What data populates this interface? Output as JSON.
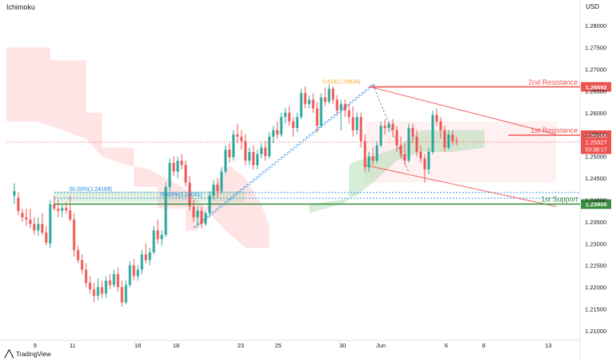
{
  "indicator": "Ichimoku",
  "currency": "USD",
  "brand": "TradingView",
  "colors": {
    "up": "#26a69a",
    "down": "#ef5350",
    "resistance": "#ef5350",
    "support": "#388e3c",
    "fib": "#ffa726",
    "fib_retrace": "#1e88e5",
    "channel": "#ef5350",
    "cloud_bull": "#a5d6a7",
    "cloud_bear": "#ffcdd2"
  },
  "chart_data": {
    "type": "candlestick",
    "ylim": [
      1.2078,
      1.2833
    ],
    "y_ticks": [
      "1.28000",
      "1.27500",
      "1.27000",
      "1.26500",
      "1.26000",
      "1.25500",
      "1.25000",
      "1.24500",
      "1.24000",
      "1.23500",
      "1.23000",
      "1.22500",
      "1.22000",
      "1.21500",
      "1.21000"
    ],
    "x_ticks": [
      "9",
      "11",
      "16",
      "18",
      "23",
      "25",
      "30",
      "Jun",
      "6",
      "8",
      "13"
    ],
    "levels": [
      {
        "key": "r2",
        "label": "2nd Resistance",
        "price": 1.26592,
        "price_label": "1.26592",
        "role": "resistance"
      },
      {
        "key": "r1",
        "label": "1st Resistance",
        "price": 1.25486,
        "price_label": "1.25486",
        "role": "resistance"
      },
      {
        "key": "s1",
        "label": "1st Support",
        "price": 1.23905,
        "price_label": "1.23905",
        "role": "support"
      }
    ],
    "current_price": {
      "price": 1.25327,
      "label": "1.25327",
      "countdown": "03:38:17"
    },
    "fib_labels": [
      {
        "text": "0.618(1.26634)",
        "price": 1.26634
      },
      {
        "text": "50.00%(1.24169)",
        "price": 1.24169
      },
      {
        "text": "78.60%(1.24041)",
        "price": 1.24041
      }
    ],
    "candles": [
      [
        1.241,
        1.2438,
        1.239,
        1.242
      ],
      [
        1.2405,
        1.2418,
        1.2365,
        1.2375
      ],
      [
        1.237,
        1.238,
        1.235,
        1.236
      ],
      [
        1.236,
        1.238,
        1.234,
        1.2355
      ],
      [
        1.2355,
        1.238,
        1.2335,
        1.2345
      ],
      [
        1.2345,
        1.236,
        1.232,
        1.233
      ],
      [
        1.233,
        1.236,
        1.2318,
        1.2345
      ],
      [
        1.2345,
        1.237,
        1.232,
        1.2325
      ],
      [
        1.2325,
        1.234,
        1.2295,
        1.2302
      ],
      [
        1.23,
        1.24,
        1.229,
        1.239
      ],
      [
        1.239,
        1.241,
        1.2375,
        1.238
      ],
      [
        1.238,
        1.24,
        1.236,
        1.2375
      ],
      [
        1.2375,
        1.239,
        1.236,
        1.2382
      ],
      [
        1.2382,
        1.2395,
        1.2368,
        1.2376
      ],
      [
        1.2376,
        1.241,
        1.235,
        1.2355
      ],
      [
        1.2355,
        1.237,
        1.227,
        1.2285
      ],
      [
        1.2285,
        1.2295,
        1.2255,
        1.2262
      ],
      [
        1.2262,
        1.2275,
        1.223,
        1.224
      ],
      [
        1.224,
        1.2255,
        1.22,
        1.221
      ],
      [
        1.221,
        1.2225,
        1.2185,
        1.2195
      ],
      [
        1.2195,
        1.221,
        1.2165,
        1.218
      ],
      [
        1.218,
        1.222,
        1.217,
        1.22
      ],
      [
        1.22,
        1.2215,
        1.2175,
        1.2185
      ],
      [
        1.2185,
        1.2225,
        1.2175,
        1.2215
      ],
      [
        1.2215,
        1.223,
        1.2195,
        1.2205
      ],
      [
        1.2205,
        1.224,
        1.22,
        1.223
      ],
      [
        1.223,
        1.2245,
        1.219,
        1.22
      ],
      [
        1.22,
        1.2215,
        1.2155,
        1.2165
      ],
      [
        1.2165,
        1.2215,
        1.216,
        1.2205
      ],
      [
        1.2205,
        1.226,
        1.22,
        1.225
      ],
      [
        1.225,
        1.2265,
        1.2215,
        1.2225
      ],
      [
        1.2225,
        1.225,
        1.2215,
        1.224
      ],
      [
        1.224,
        1.2285,
        1.223,
        1.2275
      ],
      [
        1.2275,
        1.23,
        1.2255,
        1.2262
      ],
      [
        1.2262,
        1.229,
        1.225,
        1.228
      ],
      [
        1.228,
        1.234,
        1.2275,
        1.233
      ],
      [
        1.233,
        1.2355,
        1.23,
        1.231
      ],
      [
        1.231,
        1.233,
        1.2295,
        1.232
      ],
      [
        1.232,
        1.244,
        1.2315,
        1.243
      ],
      [
        1.243,
        1.2495,
        1.242,
        1.2485
      ],
      [
        1.2485,
        1.25,
        1.2455,
        1.2465
      ],
      [
        1.2465,
        1.25,
        1.245,
        1.249
      ],
      [
        1.249,
        1.2505,
        1.247,
        1.248
      ],
      [
        1.248,
        1.249,
        1.243,
        1.244
      ],
      [
        1.244,
        1.2455,
        1.2375,
        1.2385
      ],
      [
        1.2385,
        1.24,
        1.235,
        1.236
      ],
      [
        1.236,
        1.2385,
        1.234,
        1.2375
      ],
      [
        1.2375,
        1.2385,
        1.2335,
        1.2345
      ],
      [
        1.2345,
        1.2375,
        1.234,
        1.237
      ],
      [
        1.237,
        1.242,
        1.236,
        1.241
      ],
      [
        1.241,
        1.2445,
        1.24,
        1.2435
      ],
      [
        1.2435,
        1.245,
        1.2405,
        1.242
      ],
      [
        1.242,
        1.2475,
        1.2415,
        1.2465
      ],
      [
        1.2465,
        1.2525,
        1.246,
        1.2515
      ],
      [
        1.2515,
        1.253,
        1.2485,
        1.2498
      ],
      [
        1.2498,
        1.256,
        1.249,
        1.255
      ],
      [
        1.255,
        1.2575,
        1.253,
        1.2545
      ],
      [
        1.2545,
        1.256,
        1.2515,
        1.2535
      ],
      [
        1.2535,
        1.255,
        1.248,
        1.249
      ],
      [
        1.249,
        1.252,
        1.248,
        1.251
      ],
      [
        1.251,
        1.2525,
        1.247,
        1.248
      ],
      [
        1.248,
        1.2515,
        1.247,
        1.2505
      ],
      [
        1.2505,
        1.253,
        1.2495,
        1.252
      ],
      [
        1.252,
        1.2535,
        1.249,
        1.25
      ],
      [
        1.25,
        1.2555,
        1.2495,
        1.2545
      ],
      [
        1.2545,
        1.257,
        1.253,
        1.256
      ],
      [
        1.256,
        1.258,
        1.254,
        1.255
      ],
      [
        1.255,
        1.26,
        1.2545,
        1.259
      ],
      [
        1.259,
        1.261,
        1.2575,
        1.26
      ],
      [
        1.26,
        1.2615,
        1.257,
        1.258
      ],
      [
        1.258,
        1.259,
        1.2545,
        1.2565
      ],
      [
        1.2565,
        1.26,
        1.2555,
        1.259
      ],
      [
        1.259,
        1.2655,
        1.2585,
        1.2645
      ],
      [
        1.2645,
        1.266,
        1.261,
        1.262
      ],
      [
        1.262,
        1.264,
        1.261,
        1.263
      ],
      [
        1.263,
        1.2645,
        1.26,
        1.261
      ],
      [
        1.261,
        1.2625,
        1.2555,
        1.257
      ],
      [
        1.257,
        1.2645,
        1.2565,
        1.2635
      ],
      [
        1.2635,
        1.2658,
        1.2615,
        1.2625
      ],
      [
        1.2625,
        1.2665,
        1.262,
        1.2655
      ],
      [
        1.2655,
        1.266,
        1.262,
        1.263
      ],
      [
        1.263,
        1.264,
        1.2595,
        1.2605
      ],
      [
        1.2605,
        1.263,
        1.256,
        1.262
      ],
      [
        1.262,
        1.263,
        1.259,
        1.2605
      ],
      [
        1.2605,
        1.262,
        1.2575,
        1.259
      ],
      [
        1.259,
        1.2615,
        1.2545,
        1.256
      ],
      [
        1.256,
        1.26,
        1.255,
        1.259
      ],
      [
        1.259,
        1.26,
        1.252,
        1.2535
      ],
      [
        1.2535,
        1.255,
        1.2465,
        1.2475
      ],
      [
        1.2475,
        1.251,
        1.2465,
        1.25
      ],
      [
        1.25,
        1.252,
        1.248,
        1.249
      ],
      [
        1.249,
        1.2535,
        1.2485,
        1.2525
      ],
      [
        1.2525,
        1.258,
        1.252,
        1.257
      ],
      [
        1.257,
        1.2585,
        1.255,
        1.2565
      ],
      [
        1.2565,
        1.258,
        1.2555,
        1.2575
      ],
      [
        1.2575,
        1.2585,
        1.2545,
        1.256
      ],
      [
        1.256,
        1.257,
        1.251,
        1.2525
      ],
      [
        1.2525,
        1.2545,
        1.2495,
        1.2505
      ],
      [
        1.2505,
        1.253,
        1.248,
        1.249
      ],
      [
        1.249,
        1.2575,
        1.2485,
        1.2565
      ],
      [
        1.2565,
        1.2575,
        1.253,
        1.2545
      ],
      [
        1.2545,
        1.256,
        1.25,
        1.251
      ],
      [
        1.251,
        1.2525,
        1.2485,
        1.2495
      ],
      [
        1.2495,
        1.2505,
        1.244,
        1.247
      ],
      [
        1.247,
        1.252,
        1.246,
        1.251
      ],
      [
        1.251,
        1.2605,
        1.2505,
        1.2595
      ],
      [
        1.2595,
        1.261,
        1.257,
        1.258
      ],
      [
        1.258,
        1.259,
        1.254,
        1.256
      ],
      [
        1.256,
        1.257,
        1.251,
        1.252
      ],
      [
        1.252,
        1.256,
        1.2515,
        1.255
      ],
      [
        1.255,
        1.256,
        1.2525,
        1.2535
      ],
      [
        1.2535,
        1.2545,
        1.2525,
        1.2533
      ]
    ],
    "x_range": [
      0,
      144
    ],
    "candle_start_index": 2,
    "channel": {
      "upper": [
        [
          91,
          1.266
        ],
        [
          138,
          1.255
        ]
      ],
      "lower": [
        [
          90,
          1.248
        ],
        [
          138,
          1.2385
        ]
      ]
    },
    "fib_line": [
      [
        47,
        1.2337
      ],
      [
        92,
        1.2665
      ]
    ],
    "fib_retrace": [
      [
        92,
        1.2665
      ],
      [
        101,
        1.2463
      ]
    ],
    "fib_levels_dotted": [
      1.24169,
      1.24041
    ],
    "fib_zone": [
      1.2417,
      1.2396
    ],
    "cloud_bear": [
      [
        0,
        1.275
      ],
      [
        11,
        1.275
      ],
      [
        11,
        1.272
      ],
      [
        20,
        1.272
      ],
      [
        20,
        1.26
      ],
      [
        24,
        1.26
      ],
      [
        24,
        1.252
      ],
      [
        32,
        1.252
      ],
      [
        32,
        1.243
      ],
      [
        38,
        1.243
      ],
      [
        38,
        1.238
      ],
      [
        45,
        1.238
      ],
      [
        45,
        1.233
      ],
      [
        48,
        1.233
      ],
      [
        52,
        1.243
      ],
      [
        56,
        1.248
      ],
      [
        60,
        1.245
      ],
      [
        64,
        1.239
      ],
      [
        66,
        1.234
      ],
      [
        66,
        1.229
      ],
      [
        60,
        1.229
      ],
      [
        55,
        1.233
      ],
      [
        52,
        1.236
      ],
      [
        48,
        1.24
      ],
      [
        44,
        1.243
      ],
      [
        40,
        1.245
      ],
      [
        36,
        1.247
      ],
      [
        30,
        1.248
      ],
      [
        24,
        1.25
      ],
      [
        20,
        1.254
      ],
      [
        14,
        1.256
      ],
      [
        8,
        1.258
      ],
      [
        0,
        1.258
      ]
    ],
    "cloud_bear2": [
      [
        90,
        1.258
      ],
      [
        138,
        1.258
      ],
      [
        138,
        1.244
      ],
      [
        90,
        1.244
      ]
    ],
    "cloud_bull": [
      [
        86,
        1.248
      ],
      [
        88,
        1.249
      ],
      [
        92,
        1.25
      ],
      [
        98,
        1.252
      ],
      [
        104,
        1.256
      ],
      [
        110,
        1.256
      ],
      [
        116,
        1.256
      ],
      [
        120,
        1.256
      ],
      [
        120,
        1.252
      ],
      [
        112,
        1.251
      ],
      [
        104,
        1.251
      ],
      [
        98,
        1.249
      ],
      [
        92,
        1.244
      ],
      [
        88,
        1.241
      ],
      [
        84,
        1.24
      ],
      [
        80,
        1.2395
      ],
      [
        76,
        1.239
      ],
      [
        76,
        1.237
      ],
      [
        80,
        1.238
      ],
      [
        84,
        1.239
      ],
      [
        86,
        1.24
      ]
    ],
    "cloud_bull_left": [
      [
        12,
        1.242
      ],
      [
        60,
        1.242
      ],
      [
        60,
        1.2396
      ],
      [
        12,
        1.2396
      ]
    ]
  }
}
